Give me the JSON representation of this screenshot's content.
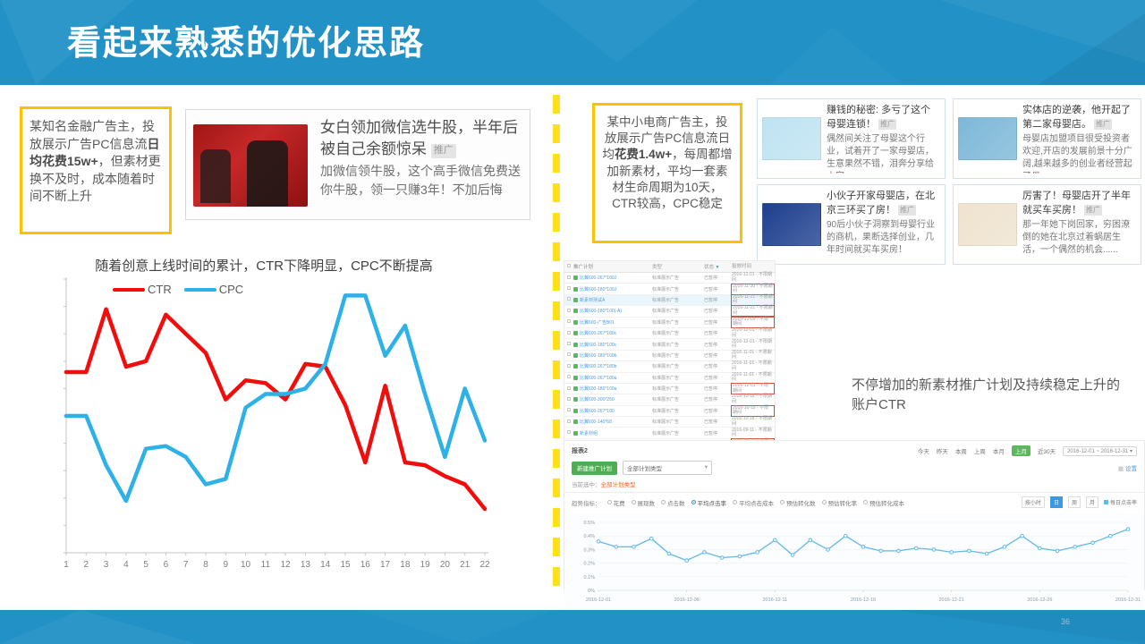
{
  "slide": {
    "title": "看起来熟悉的优化思路",
    "page_number": "36"
  },
  "left": {
    "note_box": {
      "text_before": "某知名金融广告主，投放展示广告PC信息流",
      "text_bold": "日均花费15w+",
      "text_after": "，但素材更换不及时，成本随着时间不断上升"
    },
    "ad": {
      "title": "女白领加微信选牛股，半年后被自己余额惊呆",
      "badge": "推广",
      "desc": "加微信领牛股，这个高手微信免费送你牛股，领一只赚3年！不加后悔"
    },
    "chart_title": "随着创意上线时间的累计，CTR下降明显，CPC不断提高"
  },
  "right": {
    "note_box": {
      "text_before": "某中小电商广告主，投放展示广告PC信息流日均",
      "text_bold": "花费1.4w+",
      "text_after": "，每周都增加新素材，平均一套素材生命周期为10天，CTR较高，CPC稳定"
    },
    "cards": [
      {
        "title": "赚钱的秘密: 多亏了这个母婴连锁！",
        "badge": "推广",
        "desc": "偶然间关注了母婴这个行业，试着开了一家母婴店，生意果然不错，泪奔分享给大家.....",
        "image_color": "#bfe3f2"
      },
      {
        "title": "实体店的逆袭，他开起了第二家母婴店。",
        "badge": "推广",
        "desc": "母婴店加盟项目很受投资者欢迎,开店的发展前景十分广阔,越来越多的创业者经营起了母",
        "image_color": "#7db8d8"
      },
      {
        "title": "小伙子开家母婴店，在北京三环买了房！",
        "badge": "推广",
        "desc": "90后小伙子洞察到母婴行业的商机，果断选择创业，几年时间就买车买房！",
        "image_color": "#1e3f8f"
      },
      {
        "title": "厉害了！母婴店开了半年就买车买房！",
        "badge": "推广",
        "desc": "那一年她下岗回家，穷困潦倒的她在北京过着蜗居生活，一个偶然的机会......",
        "image_color": "#efe3cf"
      }
    ],
    "table": {
      "headers": [
        "推广计划",
        "类型",
        "状态",
        "投放时间"
      ],
      "rows": [
        {
          "name": "比翼600-267*180J",
          "type": "标准展示广告",
          "status": "已暂停",
          "date": "2016-12-01 - 不限期间",
          "red": false,
          "hl": false
        },
        {
          "name": "比翼600-180*100J",
          "type": "标准展示广告",
          "status": "已暂停",
          "date": "2016-11-30 - 不限期间",
          "red": true,
          "hl": false
        },
        {
          "name": "新素材测试A",
          "type": "标准展示广告",
          "status": "已暂停",
          "date": "2016-11-21 - 不限期间",
          "red": true,
          "hl": true
        },
        {
          "name": "比翼600-180*100(-A)",
          "type": "标准展示广告",
          "status": "已暂停",
          "date": "2016-11-21 - 不限期间",
          "red": true,
          "hl": false
        },
        {
          "name": "比翼600-广告B01",
          "type": "标准展示广告",
          "status": "已暂停",
          "date": "2016-12-09 - 不限期间",
          "red": true,
          "hl": false
        },
        {
          "name": "比翼600-267*180c",
          "type": "标准展示广告",
          "status": "已暂停",
          "date": "2016-12-01 - 不限期间",
          "red": false,
          "hl": false
        },
        {
          "name": "比翼600-180*100c",
          "type": "标准展示广告",
          "status": "已暂停",
          "date": "2016-12-01 - 不限期间",
          "red": false,
          "hl": false
        },
        {
          "name": "比翼600-180*100b",
          "type": "标准展示广告",
          "status": "已暂停",
          "date": "2016-11-01 - 不限期间",
          "red": false,
          "hl": false
        },
        {
          "name": "比翼600-267*180b",
          "type": "标准展示广告",
          "status": "已暂停",
          "date": "2016-11-01 - 不限期间",
          "red": false,
          "hl": false
        },
        {
          "name": "比翼600-267*180a",
          "type": "标准展示广告",
          "status": "已暂停",
          "date": "2016-11-01 - 不限期间",
          "red": false,
          "hl": false
        },
        {
          "name": "比翼600-180*100a",
          "type": "标准展示广告",
          "status": "已暂停",
          "date": "2016-12-01 - 不限期间",
          "red": true,
          "hl": false
        },
        {
          "name": "比翼600-300*250",
          "type": "标准展示广告",
          "status": "已暂停",
          "date": "2016-10-18 - 不限期间",
          "red": false,
          "hl": false
        },
        {
          "name": "比翼600-267*180",
          "type": "标准展示广告",
          "status": "已暂停",
          "date": "2016-10-18 - 不限期间",
          "red": true,
          "hl": false
        },
        {
          "name": "比翼600-140*68",
          "type": "标准展示广告",
          "status": "已暂停",
          "date": "2016-10-18 - 不限期间",
          "red": false,
          "hl": false
        },
        {
          "name": "新素材组",
          "type": "标准展示广告",
          "status": "已暂停",
          "date": "2016-09-11 - 不限期间",
          "red": false,
          "hl": false
        },
        {
          "name": "八周-测试",
          "type": "标准展示广告",
          "status": "已暂停",
          "date": "2016-09-10 - 不限期间",
          "red": true,
          "hl": false
        }
      ]
    },
    "caption": "不停增加的新素材推广计划及持续稳定上升的账户CTR",
    "dashboard": {
      "report_label": "报表2",
      "date_tabs": [
        "今天",
        "昨天",
        "本周",
        "上周",
        "本月",
        "上月",
        "近30天"
      ],
      "active_tab": "上月",
      "date_range": "2016-12-01 ~ 2016-12-31 ▾",
      "new_button": "新建推广计划",
      "filter_dropdown": "全部计划类型",
      "settings": "设置",
      "selected_label": "当前选中：",
      "selected_value": "全部计划类型",
      "metric_label": "趋势指标：",
      "metrics": [
        "花费",
        "展现数",
        "点击数",
        "平均点击率",
        "平均点击成本",
        "预估转化数",
        "预估转化率",
        "预估转化成本"
      ],
      "active_metric": "平均点击率",
      "granularity": [
        "按小时",
        "日",
        "周",
        "月"
      ],
      "active_granularity": "日",
      "legend": "每日点击率"
    }
  },
  "colors": {
    "header_blue": "#2191c6",
    "callout_yellow": "#ffc000",
    "divider_yellow": "#ffe11a",
    "ctr_red": "#f20d0d",
    "cpc_blue": "#2eb1e6",
    "daily_ctr_blue": "#62b8e7",
    "button_green": "#4fae52"
  },
  "chart_data": [
    {
      "type": "line",
      "title": "随着创意上线时间的累计，CTR下降明显，CPC不断提高",
      "categories": [
        1,
        2,
        3,
        4,
        5,
        6,
        7,
        8,
        9,
        10,
        11,
        12,
        13,
        14,
        15,
        16,
        17,
        18,
        19,
        20,
        21,
        22
      ],
      "series": [
        {
          "name": "CTR",
          "color": "#f20d0d",
          "values": [
            66,
            66,
            89,
            68,
            70,
            87,
            80,
            73,
            56,
            63,
            62,
            56,
            69,
            68,
            54,
            33,
            61,
            33,
            32,
            28,
            25,
            16
          ]
        },
        {
          "name": "CPC",
          "color": "#2eb1e6",
          "values": [
            50,
            50,
            32,
            19,
            38,
            39,
            35,
            25,
            27,
            53,
            58,
            58,
            60,
            69,
            94,
            94,
            72,
            83,
            58,
            35,
            60,
            41
          ]
        }
      ],
      "xlabel": "",
      "ylabel": "",
      "ylim": [
        0,
        100
      ],
      "grid": false,
      "legend_position": "top-left"
    },
    {
      "type": "line",
      "title": "每日点击率",
      "color": "#62b8e7",
      "values": [
        0.36,
        0.32,
        0.32,
        0.38,
        0.27,
        0.22,
        0.28,
        0.24,
        0.25,
        0.28,
        0.37,
        0.26,
        0.37,
        0.3,
        0.4,
        0.32,
        0.29,
        0.29,
        0.31,
        0.3,
        0.28,
        0.29,
        0.27,
        0.32,
        0.4,
        0.31,
        0.29,
        0.32,
        0.35,
        0.4,
        0.45
      ],
      "x_tick_positions": [
        0,
        5,
        10,
        15,
        20,
        25,
        30
      ],
      "x_tick_labels": [
        "2016-12-01",
        "2016-12-06",
        "2016-12-11",
        "2016-12-16",
        "2016-12-21",
        "2016-12-26",
        "2016-12-31"
      ],
      "y_ticks": [
        "0%",
        "0.1%",
        "0.2%",
        "0.3%",
        "0.4%",
        "0.5%"
      ],
      "ylim": [
        0,
        0.5
      ],
      "grid": true,
      "legend_position": "top-right"
    }
  ]
}
